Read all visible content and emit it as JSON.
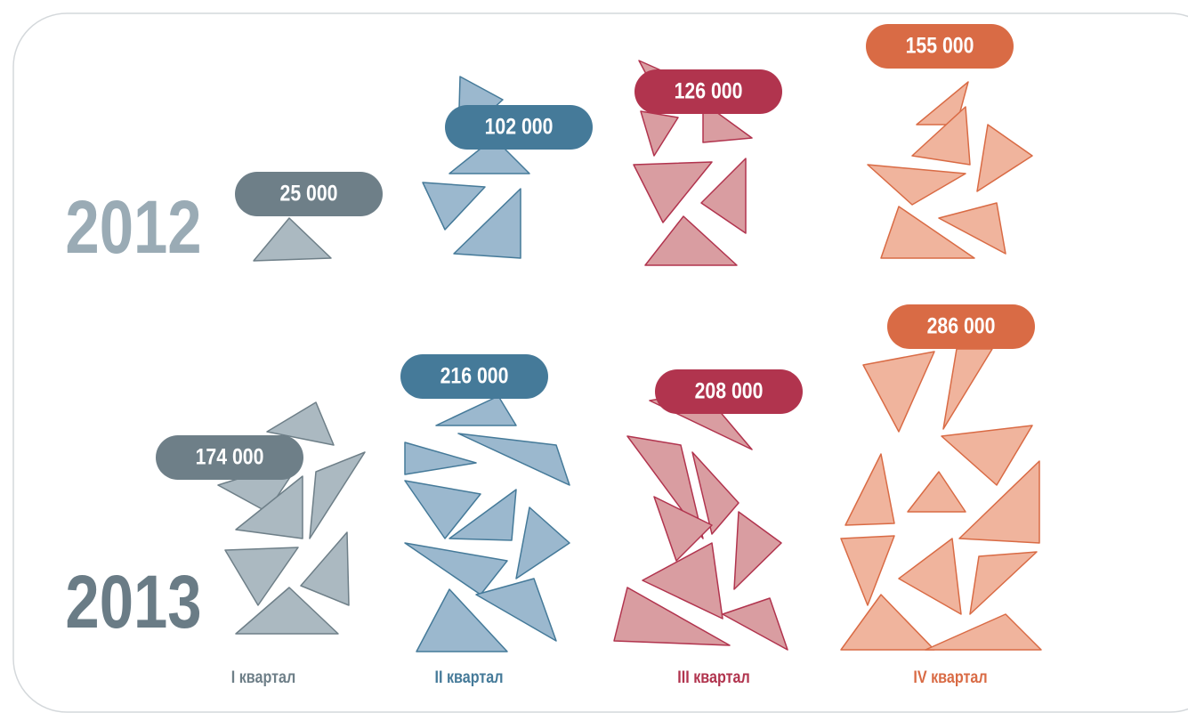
{
  "chart_data": {
    "type": "pictogram",
    "categories": [
      "I квартал",
      "II квартал",
      "III квартал",
      "IV квартал"
    ],
    "colors": [
      "#6e7f88",
      "#457a99",
      "#b1344e",
      "#d96b45"
    ],
    "fill_colors": [
      "#abb9c1",
      "#9bb8ce",
      "#d99da1",
      "#f0b49d"
    ],
    "series": [
      {
        "name": "2012",
        "color": "#9aabb5",
        "values": [
          25000,
          102000,
          126000,
          155000
        ],
        "value_labels": [
          "25 000",
          "102 000",
          "126 000",
          "155 000"
        ]
      },
      {
        "name": "2013",
        "color": "#6a7c86",
        "values": [
          174000,
          216000,
          208000,
          286000
        ],
        "value_labels": [
          "174 000",
          "216 000",
          "208 000",
          "286 000"
        ]
      }
    ]
  }
}
